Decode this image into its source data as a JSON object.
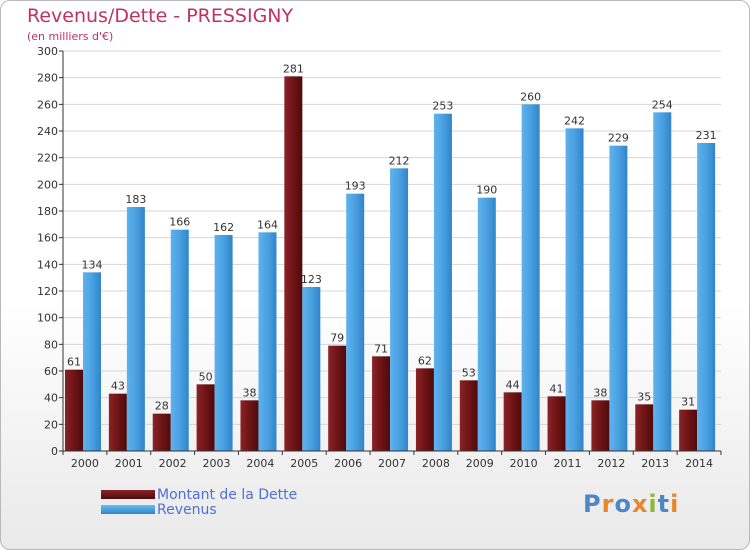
{
  "title": "Revenus/Dette - PRESSIGNY",
  "subtitle": "(en milliers d'€)",
  "logo": {
    "text": "Proxiti",
    "letter_colors": [
      "#4e86c6",
      "#e8862a",
      "#4e86c6",
      "#e8862a",
      "#8fb83a",
      "#4e86c6",
      "#e8862a"
    ]
  },
  "colors": {
    "dette": "#7a1b1d",
    "revenus": "#4aa0e0",
    "axis": "#333333",
    "grid": "#d6d6d6"
  },
  "chart_data": {
    "type": "bar",
    "categories": [
      "2000",
      "2001",
      "2002",
      "2003",
      "2004",
      "2005",
      "2006",
      "2007",
      "2008",
      "2009",
      "2010",
      "2011",
      "2012",
      "2013",
      "2014"
    ],
    "series": [
      {
        "name": "Montant de la Dette",
        "values": [
          61,
          43,
          28,
          50,
          38,
          281,
          79,
          71,
          62,
          53,
          44,
          41,
          38,
          35,
          31
        ]
      },
      {
        "name": "Revenus",
        "values": [
          134,
          183,
          166,
          162,
          164,
          123,
          193,
          212,
          253,
          190,
          260,
          242,
          229,
          254,
          231
        ]
      }
    ],
    "yticks": [
      0,
      20,
      40,
      60,
      80,
      100,
      120,
      140,
      160,
      180,
      200,
      220,
      240,
      260,
      280,
      300
    ],
    "ylim": [
      0,
      300
    ],
    "legend": "bottom-left",
    "grid": true
  }
}
